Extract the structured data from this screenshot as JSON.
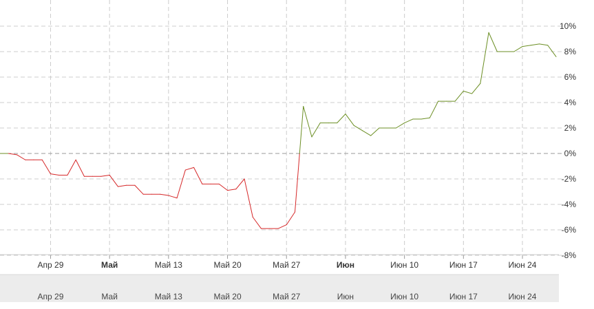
{
  "chart_data": {
    "type": "line",
    "title": "",
    "xlabel": "",
    "ylabel": "",
    "ylim": [
      -8,
      10
    ],
    "y_ticks": [
      -8,
      -6,
      -4,
      -2,
      0,
      2,
      4,
      6,
      8,
      10
    ],
    "y_tick_labels": [
      "-8%",
      "-6%",
      "-4%",
      "-2%",
      "0%",
      "2%",
      "4%",
      "6%",
      "8%",
      "10%"
    ],
    "grid": true,
    "x_ticks": [
      {
        "label": "Апр 29",
        "index": 6,
        "bold": false
      },
      {
        "label": "Май",
        "index": 13,
        "bold": true
      },
      {
        "label": "Май 13",
        "index": 20,
        "bold": false
      },
      {
        "label": "Май 20",
        "index": 27,
        "bold": false
      },
      {
        "label": "Май 27",
        "index": 34,
        "bold": false
      },
      {
        "label": "Июн",
        "index": 41,
        "bold": true
      },
      {
        "label": "Июн 10",
        "index": 48,
        "bold": false
      },
      {
        "label": "Июн 17",
        "index": 55,
        "bold": false
      },
      {
        "label": "Июн 24",
        "index": 62,
        "bold": false
      }
    ],
    "navigator_labels": [
      "Апр 29",
      "Май",
      "Май 13",
      "Май 20",
      "Май 27",
      "Июн",
      "Июн 10",
      "Июн 17",
      "Июн 24"
    ],
    "colors": {
      "negative": "#d62728",
      "positive": "#6b8e23",
      "grid": "#cccccc",
      "navigator_bg": "#ececec"
    },
    "x_index_range": [
      0,
      66
    ],
    "series": [
      {
        "values": [
          {
            "x": 0,
            "y": 0.0
          },
          {
            "x": 1,
            "y": 0.0
          },
          {
            "x": 2,
            "y": -0.1
          },
          {
            "x": 3,
            "y": -0.5
          },
          {
            "x": 4,
            "y": -0.5
          },
          {
            "x": 5,
            "y": -0.5
          },
          {
            "x": 6,
            "y": -1.6
          },
          {
            "x": 7,
            "y": -1.7
          },
          {
            "x": 8,
            "y": -1.7
          },
          {
            "x": 9,
            "y": -0.5
          },
          {
            "x": 10,
            "y": -1.8
          },
          {
            "x": 11,
            "y": -1.8
          },
          {
            "x": 12,
            "y": -1.8
          },
          {
            "x": 13,
            "y": -1.7
          },
          {
            "x": 14,
            "y": -2.6
          },
          {
            "x": 15,
            "y": -2.5
          },
          {
            "x": 16,
            "y": -2.5
          },
          {
            "x": 17,
            "y": -3.2
          },
          {
            "x": 18,
            "y": -3.2
          },
          {
            "x": 19,
            "y": -3.2
          },
          {
            "x": 20,
            "y": -3.3
          },
          {
            "x": 21,
            "y": -3.5
          },
          {
            "x": 22,
            "y": -1.3
          },
          {
            "x": 23,
            "y": -1.1
          },
          {
            "x": 24,
            "y": -2.4
          },
          {
            "x": 25,
            "y": -2.4
          },
          {
            "x": 26,
            "y": -2.4
          },
          {
            "x": 27,
            "y": -2.9
          },
          {
            "x": 28,
            "y": -2.8
          },
          {
            "x": 29,
            "y": -2.0
          },
          {
            "x": 30,
            "y": -5.0
          },
          {
            "x": 31,
            "y": -5.9
          },
          {
            "x": 32,
            "y": -5.9
          },
          {
            "x": 33,
            "y": -5.9
          },
          {
            "x": 34,
            "y": -5.6
          },
          {
            "x": 35,
            "y": -4.6
          },
          {
            "x": 36,
            "y": 3.7
          },
          {
            "x": 37,
            "y": 1.3
          },
          {
            "x": 38,
            "y": 2.4
          },
          {
            "x": 39,
            "y": 2.4
          },
          {
            "x": 40,
            "y": 2.4
          },
          {
            "x": 41,
            "y": 3.1
          },
          {
            "x": 42,
            "y": 2.2
          },
          {
            "x": 43,
            "y": 1.8
          },
          {
            "x": 44,
            "y": 1.4
          },
          {
            "x": 45,
            "y": 2.0
          },
          {
            "x": 46,
            "y": 2.0
          },
          {
            "x": 47,
            "y": 2.0
          },
          {
            "x": 48,
            "y": 2.4
          },
          {
            "x": 49,
            "y": 2.7
          },
          {
            "x": 50,
            "y": 2.7
          },
          {
            "x": 51,
            "y": 2.8
          },
          {
            "x": 52,
            "y": 4.1
          },
          {
            "x": 53,
            "y": 4.1
          },
          {
            "x": 54,
            "y": 4.1
          },
          {
            "x": 55,
            "y": 4.9
          },
          {
            "x": 56,
            "y": 4.7
          },
          {
            "x": 57,
            "y": 5.5
          },
          {
            "x": 58,
            "y": 9.5
          },
          {
            "x": 59,
            "y": 8.0
          },
          {
            "x": 60,
            "y": 8.0
          },
          {
            "x": 61,
            "y": 8.0
          },
          {
            "x": 62,
            "y": 8.4
          },
          {
            "x": 63,
            "y": 8.5
          },
          {
            "x": 64,
            "y": 8.6
          },
          {
            "x": 65,
            "y": 8.5
          },
          {
            "x": 66,
            "y": 7.6
          }
        ]
      }
    ]
  }
}
